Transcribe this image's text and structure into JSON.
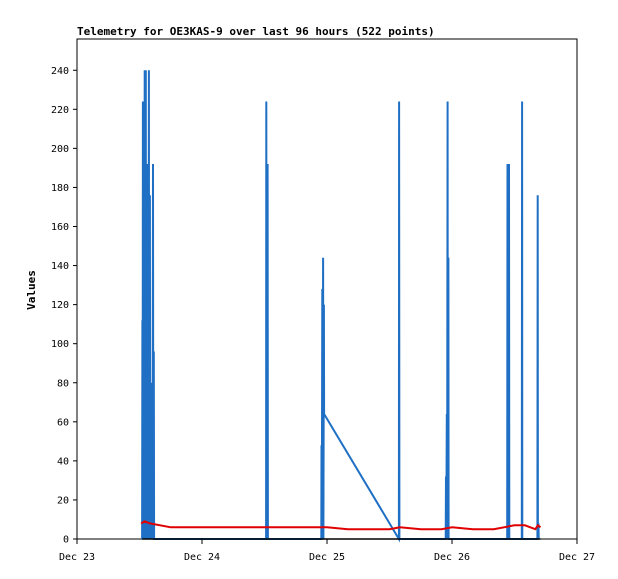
{
  "chart_data": {
    "type": "line",
    "title": "Telemetry for OE3KAS-9 over last 96 hours (522 points)",
    "xlabel": "",
    "ylabel": "Values",
    "ylim": [
      0,
      256
    ],
    "xlim": [
      0,
      96
    ],
    "x_unit": "hours since Dec 23 00:00",
    "x_ticks": [
      {
        "value": 0,
        "label": "Dec 23"
      },
      {
        "value": 24,
        "label": "Dec 24"
      },
      {
        "value": 48,
        "label": "Dec 25"
      },
      {
        "value": 72,
        "label": "Dec 26"
      },
      {
        "value": 96,
        "label": "Dec 27"
      }
    ],
    "y_ticks": [
      0,
      20,
      40,
      60,
      80,
      100,
      120,
      140,
      160,
      180,
      200,
      220,
      240
    ],
    "grid": false,
    "series": [
      {
        "name": "",
        "color": "#1f6fc5",
        "points": [
          [
            12.5,
            0
          ],
          [
            12.55,
            112
          ],
          [
            12.6,
            0
          ],
          [
            12.65,
            224
          ],
          [
            12.7,
            0
          ],
          [
            12.75,
            208
          ],
          [
            12.8,
            0
          ],
          [
            12.85,
            64
          ],
          [
            12.9,
            0
          ],
          [
            13.0,
            240
          ],
          [
            13.05,
            0
          ],
          [
            13.1,
            192
          ],
          [
            13.15,
            0
          ],
          [
            13.2,
            240
          ],
          [
            13.25,
            0
          ],
          [
            13.35,
            120
          ],
          [
            13.4,
            0
          ],
          [
            13.55,
            192
          ],
          [
            13.6,
            0
          ],
          [
            13.65,
            48
          ],
          [
            13.7,
            0
          ],
          [
            13.8,
            240
          ],
          [
            13.85,
            0
          ],
          [
            13.9,
            128
          ],
          [
            13.95,
            0
          ],
          [
            14.0,
            176
          ],
          [
            14.05,
            0
          ],
          [
            14.15,
            40
          ],
          [
            14.2,
            0
          ],
          [
            14.3,
            80
          ],
          [
            14.35,
            0
          ],
          [
            14.45,
            10
          ],
          [
            14.5,
            0
          ],
          [
            14.6,
            192
          ],
          [
            14.65,
            0
          ],
          [
            14.75,
            96
          ],
          [
            14.8,
            0
          ],
          [
            36.3,
            0
          ],
          [
            36.35,
            224
          ],
          [
            36.4,
            0
          ],
          [
            36.45,
            32
          ],
          [
            36.5,
            0
          ],
          [
            36.6,
            192
          ],
          [
            36.65,
            0
          ],
          [
            46.9,
            0
          ],
          [
            46.95,
            48
          ],
          [
            47.0,
            0
          ],
          [
            47.1,
            128
          ],
          [
            47.15,
            0
          ],
          [
            47.25,
            144
          ],
          [
            47.3,
            0
          ],
          [
            47.4,
            120
          ],
          [
            47.45,
            64
          ],
          [
            61.8,
            0
          ],
          [
            61.85,
            224
          ],
          [
            61.9,
            0
          ],
          [
            70.8,
            0
          ],
          [
            70.85,
            32
          ],
          [
            70.9,
            0
          ],
          [
            71.0,
            64
          ],
          [
            71.05,
            0
          ],
          [
            71.15,
            224
          ],
          [
            71.2,
            0
          ],
          [
            71.3,
            144
          ],
          [
            71.35,
            0
          ],
          [
            82.6,
            0
          ],
          [
            82.65,
            192
          ],
          [
            82.7,
            0
          ],
          [
            82.8,
            160
          ],
          [
            82.85,
            0
          ],
          [
            82.95,
            192
          ],
          [
            83.0,
            0
          ],
          [
            85.4,
            0
          ],
          [
            85.45,
            224
          ],
          [
            85.5,
            0
          ],
          [
            88.4,
            0
          ],
          [
            88.45,
            176
          ],
          [
            88.5,
            0
          ],
          [
            88.6,
            8
          ],
          [
            88.65,
            0
          ]
        ]
      },
      {
        "name": "",
        "color": "#e00000",
        "points": [
          [
            12.3,
            8
          ],
          [
            13.0,
            9
          ],
          [
            14.0,
            8
          ],
          [
            18,
            6
          ],
          [
            24,
            6
          ],
          [
            30,
            6
          ],
          [
            36,
            6
          ],
          [
            40,
            6
          ],
          [
            46,
            6
          ],
          [
            48,
            6
          ],
          [
            52,
            5
          ],
          [
            56,
            5
          ],
          [
            60,
            5
          ],
          [
            62,
            6
          ],
          [
            66,
            5
          ],
          [
            70,
            5
          ],
          [
            72,
            6
          ],
          [
            76,
            5
          ],
          [
            80,
            5
          ],
          [
            84,
            7
          ],
          [
            86,
            7
          ],
          [
            88,
            5
          ],
          [
            88.5,
            7
          ],
          [
            89,
            6
          ]
        ]
      },
      {
        "name": "",
        "color": "#000000",
        "points": [
          [
            12.5,
            0
          ],
          [
            89,
            0
          ]
        ]
      }
    ]
  }
}
